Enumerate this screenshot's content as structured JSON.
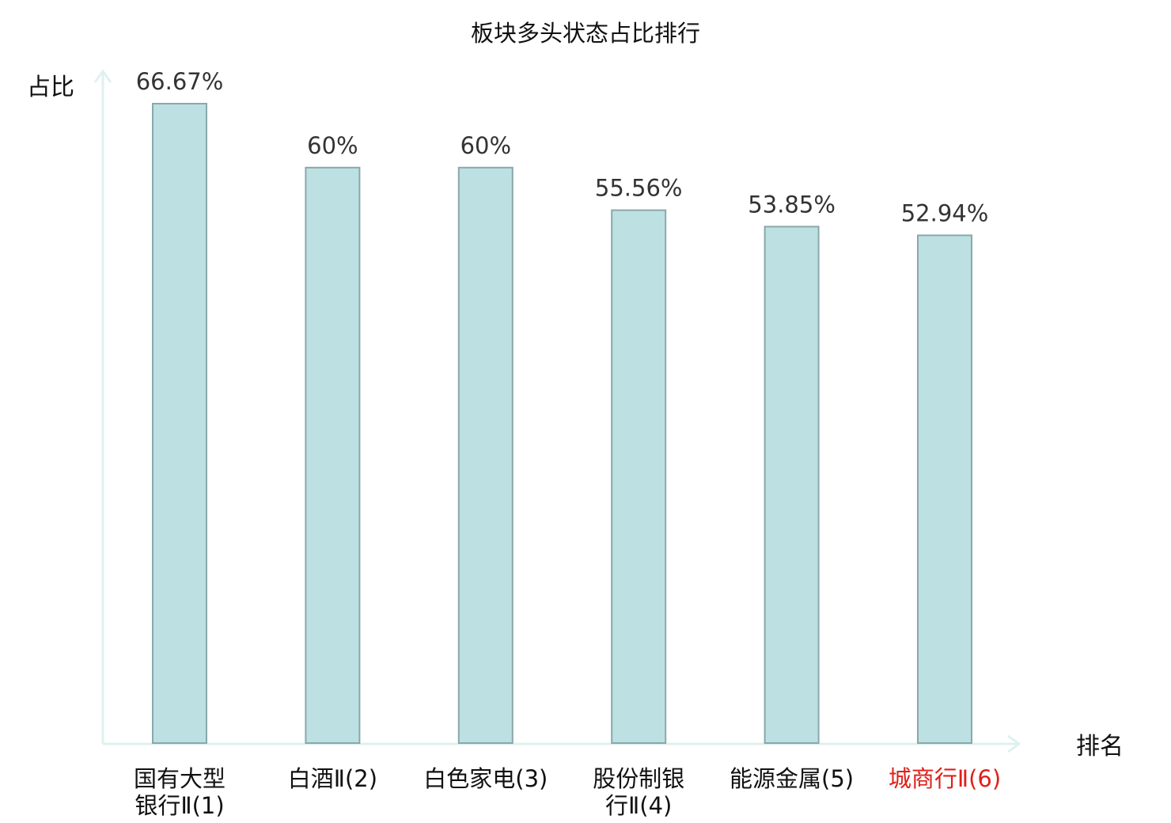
{
  "chart_data": {
    "type": "bar",
    "title": "板块多头状态占比排行",
    "ylabel": "占比",
    "xlabel": "排名",
    "categories": [
      [
        "国有大型",
        "银行Ⅱ(1)"
      ],
      [
        "白酒Ⅱ(2)"
      ],
      [
        "白色家电(3)"
      ],
      [
        "股份制银",
        "行Ⅱ(4)"
      ],
      [
        "能源金属(5)"
      ],
      [
        "城商行Ⅱ(6)"
      ]
    ],
    "values": [
      66.67,
      60,
      60,
      55.56,
      53.85,
      52.94
    ],
    "value_labels": [
      "66.67%",
      "60%",
      "60%",
      "55.56%",
      "53.85%",
      "52.94%"
    ],
    "ylim": [
      0,
      66.67
    ],
    "highlight_index": 5,
    "grid": false,
    "legend": "none",
    "colors": {
      "bar_fill": "#bde0e3",
      "bar_stroke": "#89a8ab",
      "axis": "#dff1ef",
      "text": "#333333",
      "highlight_text": "#e0201b"
    }
  }
}
